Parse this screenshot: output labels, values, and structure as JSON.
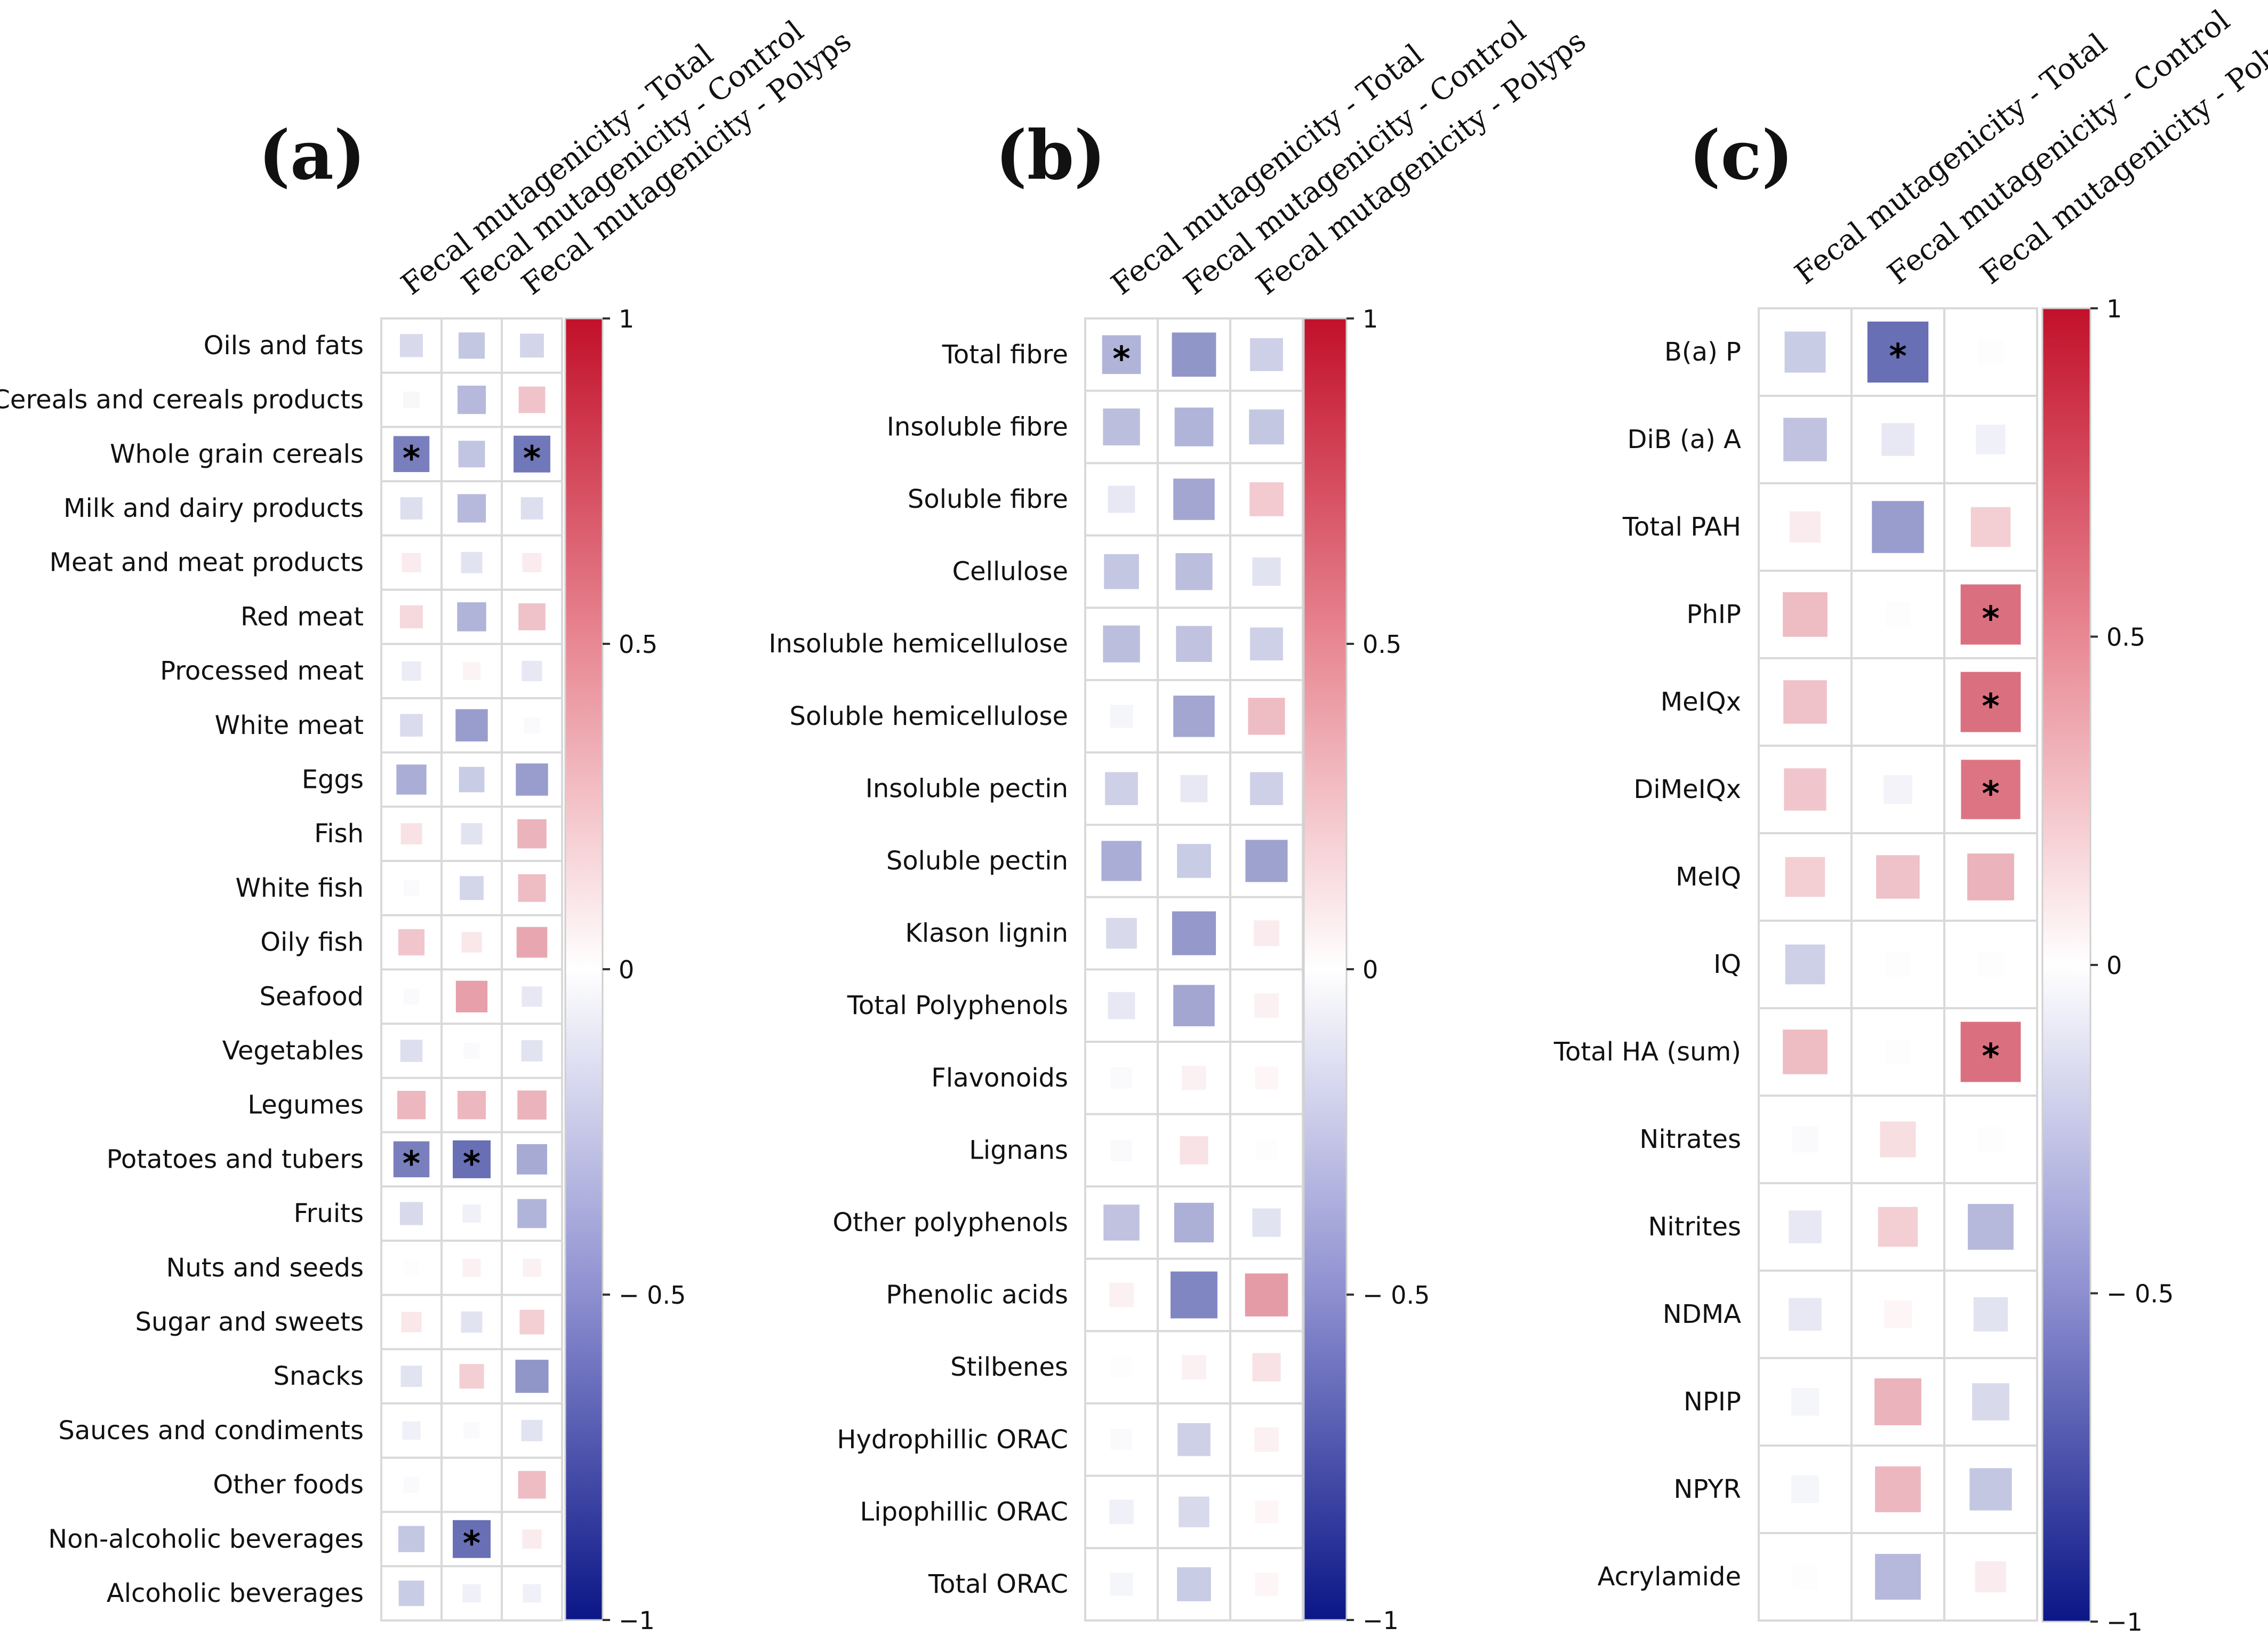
{
  "chart_data": [
    {
      "panel": "(a)",
      "type": "heatmap",
      "columns": [
        "Fecal mutagenicity - Total",
        "Fecal mutagenicity - Control",
        "Fecal mutagenicity - Polyps"
      ],
      "rows": [
        {
          "label": "Oils and fats",
          "values": [
            -0.16,
            -0.24,
            -0.18
          ],
          "sig": [
            false,
            false,
            false
          ]
        },
        {
          "label": "Cereals and cereals products",
          "values": [
            -0.03,
            -0.3,
            0.25
          ],
          "sig": [
            false,
            false,
            false
          ]
        },
        {
          "label": "Whole grain cereals",
          "values": [
            -0.55,
            -0.25,
            -0.58
          ],
          "sig": [
            true,
            false,
            true
          ]
        },
        {
          "label": "Milk and dairy products",
          "values": [
            -0.14,
            -0.3,
            -0.14
          ],
          "sig": [
            false,
            false,
            false
          ]
        },
        {
          "label": "Meat and meat products",
          "values": [
            0.08,
            -0.12,
            0.08
          ],
          "sig": [
            false,
            false,
            false
          ]
        },
        {
          "label": "Red meat",
          "values": [
            0.16,
            -0.32,
            0.26
          ],
          "sig": [
            false,
            false,
            false
          ]
        },
        {
          "label": "Processed meat",
          "values": [
            -0.08,
            0.05,
            -0.1
          ],
          "sig": [
            false,
            false,
            false
          ]
        },
        {
          "label": "White meat",
          "values": [
            -0.15,
            -0.42,
            -0.02
          ],
          "sig": [
            false,
            false,
            false
          ]
        },
        {
          "label": "Eggs",
          "values": [
            -0.35,
            -0.22,
            -0.42
          ],
          "sig": [
            false,
            false,
            false
          ]
        },
        {
          "label": "Fish",
          "values": [
            0.12,
            -0.12,
            0.32
          ],
          "sig": [
            false,
            false,
            false
          ]
        },
        {
          "label": "White fish",
          "values": [
            -0.02,
            -0.18,
            0.28
          ],
          "sig": [
            false,
            false,
            false
          ]
        },
        {
          "label": "Oily fish",
          "values": [
            0.24,
            0.1,
            0.37
          ],
          "sig": [
            false,
            false,
            false
          ]
        },
        {
          "label": "Seafood",
          "values": [
            -0.02,
            0.4,
            -0.1
          ],
          "sig": [
            false,
            false,
            false
          ]
        },
        {
          "label": "Vegetables",
          "values": [
            -0.14,
            -0.02,
            -0.12
          ],
          "sig": [
            false,
            false,
            false
          ]
        },
        {
          "label": "Legumes",
          "values": [
            0.3,
            0.3,
            0.32
          ],
          "sig": [
            false,
            false,
            false
          ]
        },
        {
          "label": "Potatoes and tubers",
          "values": [
            -0.55,
            -0.62,
            -0.36
          ],
          "sig": [
            true,
            true,
            false
          ]
        },
        {
          "label": "Fruits",
          "values": [
            -0.16,
            -0.06,
            -0.32
          ],
          "sig": [
            false,
            false,
            false
          ]
        },
        {
          "label": "Nuts and seeds",
          "values": [
            -0.01,
            0.06,
            0.06
          ],
          "sig": [
            false,
            false,
            false
          ]
        },
        {
          "label": "Sugar and sweets",
          "values": [
            0.1,
            -0.12,
            0.2
          ],
          "sig": [
            false,
            false,
            false
          ]
        },
        {
          "label": "Snacks",
          "values": [
            -0.12,
            0.2,
            -0.45
          ],
          "sig": [
            false,
            false,
            false
          ]
        },
        {
          "label": "Sauces and condiments",
          "values": [
            -0.06,
            -0.02,
            -0.12
          ],
          "sig": [
            false,
            false,
            false
          ]
        },
        {
          "label": "Other foods",
          "values": [
            -0.02,
            0.0,
            0.28
          ],
          "sig": [
            false,
            false,
            false
          ]
        },
        {
          "label": "Non-alcoholic beverages",
          "values": [
            -0.24,
            -0.62,
            0.08
          ],
          "sig": [
            false,
            true,
            false
          ]
        },
        {
          "label": "Alcoholic beverages",
          "values": [
            -0.22,
            -0.06,
            -0.06
          ],
          "sig": [
            false,
            false,
            false
          ]
        }
      ],
      "legend": {
        "min": -1,
        "max": 1,
        "ticks": [
          "1",
          "0.5",
          "0",
          "− 0.5",
          "−1"
        ],
        "tick_values": [
          1,
          0.5,
          0,
          -0.5,
          -1
        ]
      }
    },
    {
      "panel": "(b)",
      "type": "heatmap",
      "columns": [
        "Fecal mutagenicity - Total",
        "Fecal mutagenicity - Control",
        "Fecal mutagenicity - Polyps"
      ],
      "rows": [
        {
          "label": "Total fibre",
          "values": [
            -0.32,
            -0.45,
            -0.2
          ],
          "sig": [
            true,
            false,
            false
          ]
        },
        {
          "label": "Insoluble fibre",
          "values": [
            -0.28,
            -0.32,
            -0.24
          ],
          "sig": [
            false,
            false,
            false
          ]
        },
        {
          "label": "Soluble fibre",
          "values": [
            -0.1,
            -0.38,
            0.22
          ],
          "sig": [
            false,
            false,
            false
          ]
        },
        {
          "label": "Cellulose",
          "values": [
            -0.24,
            -0.28,
            -0.12
          ],
          "sig": [
            false,
            false,
            false
          ]
        },
        {
          "label": "Insoluble hemicellulose",
          "values": [
            -0.28,
            -0.26,
            -0.2
          ],
          "sig": [
            false,
            false,
            false
          ]
        },
        {
          "label": "Soluble hemicellulose",
          "values": [
            -0.04,
            -0.38,
            0.28
          ],
          "sig": [
            false,
            false,
            false
          ]
        },
        {
          "label": "Insoluble pectin",
          "values": [
            -0.2,
            -0.1,
            -0.2
          ],
          "sig": [
            false,
            false,
            false
          ]
        },
        {
          "label": "Soluble pectin",
          "values": [
            -0.35,
            -0.22,
            -0.4
          ],
          "sig": [
            false,
            false,
            false
          ]
        },
        {
          "label": "Klason lignin",
          "values": [
            -0.16,
            -0.44,
            0.08
          ],
          "sig": [
            false,
            false,
            false
          ]
        },
        {
          "label": "Total Polyphenols",
          "values": [
            -0.1,
            -0.38,
            0.06
          ],
          "sig": [
            false,
            false,
            false
          ]
        },
        {
          "label": "Flavonoids",
          "values": [
            -0.02,
            0.06,
            0.04
          ],
          "sig": [
            false,
            false,
            false
          ]
        },
        {
          "label": "Lignans",
          "values": [
            -0.02,
            0.12,
            -0.01
          ],
          "sig": [
            false,
            false,
            false
          ]
        },
        {
          "label": "Other polyphenols",
          "values": [
            -0.26,
            -0.34,
            -0.12
          ],
          "sig": [
            false,
            false,
            false
          ]
        },
        {
          "label": "Phenolic acids",
          "values": [
            0.06,
            -0.52,
            0.42
          ],
          "sig": [
            false,
            false,
            false
          ]
        },
        {
          "label": "Stilbenes",
          "values": [
            -0.01,
            0.06,
            0.12
          ],
          "sig": [
            false,
            false,
            false
          ]
        },
        {
          "label": "Hydrophillic ORAC",
          "values": [
            -0.02,
            -0.2,
            0.06
          ],
          "sig": [
            false,
            false,
            false
          ]
        },
        {
          "label": "Lipophillic ORAC",
          "values": [
            -0.06,
            -0.16,
            0.04
          ],
          "sig": [
            false,
            false,
            false
          ]
        },
        {
          "label": "Total ORAC",
          "values": [
            -0.04,
            -0.22,
            0.04
          ],
          "sig": [
            false,
            false,
            false
          ]
        }
      ],
      "legend": {
        "min": -1,
        "max": 1,
        "ticks": [
          "1",
          "0.5",
          "0",
          "− 0.5",
          "−1"
        ],
        "tick_values": [
          1,
          0.5,
          0,
          -0.5,
          -1
        ]
      }
    },
    {
      "panel": "(c)",
      "type": "heatmap",
      "columns": [
        "Fecal mutagenicity - Total",
        "Fecal mutagenicity - Control",
        "Fecal mutagenicity - Polyps"
      ],
      "rows": [
        {
          "label": "B(a) P",
          "values": [
            -0.22,
            -0.62,
            -0.01
          ],
          "sig": [
            false,
            true,
            false
          ]
        },
        {
          "label": "DiB (a) A",
          "values": [
            -0.26,
            -0.1,
            -0.06
          ],
          "sig": [
            false,
            false,
            false
          ]
        },
        {
          "label": "Total PAH",
          "values": [
            0.08,
            -0.42,
            0.2
          ],
          "sig": [
            false,
            false,
            false
          ]
        },
        {
          "label": "PhIP",
          "values": [
            0.28,
            -0.01,
            0.6
          ],
          "sig": [
            false,
            false,
            true
          ]
        },
        {
          "label": "MeIQx",
          "values": [
            0.26,
            0.0,
            0.6
          ],
          "sig": [
            false,
            false,
            true
          ]
        },
        {
          "label": "DiMeIQx",
          "values": [
            0.24,
            -0.05,
            0.58
          ],
          "sig": [
            false,
            false,
            true
          ]
        },
        {
          "label": "MeIQ",
          "values": [
            0.2,
            0.26,
            0.32
          ],
          "sig": [
            false,
            false,
            false
          ]
        },
        {
          "label": "IQ",
          "values": [
            -0.2,
            -0.01,
            -0.01
          ],
          "sig": [
            false,
            false,
            false
          ]
        },
        {
          "label": "Total HA (sum)",
          "values": [
            0.28,
            -0.01,
            0.6
          ],
          "sig": [
            false,
            false,
            true
          ]
        },
        {
          "label": "Nitrates",
          "values": [
            -0.02,
            0.14,
            -0.01
          ],
          "sig": [
            false,
            false,
            false
          ]
        },
        {
          "label": "Nitrites",
          "values": [
            -0.1,
            0.2,
            -0.3
          ],
          "sig": [
            false,
            false,
            false
          ]
        },
        {
          "label": "NDMA",
          "values": [
            -0.1,
            0.04,
            -0.12
          ],
          "sig": [
            false,
            false,
            false
          ]
        },
        {
          "label": "NPIP",
          "values": [
            -0.04,
            0.32,
            -0.16
          ],
          "sig": [
            false,
            false,
            false
          ]
        },
        {
          "label": "NPYR",
          "values": [
            -0.04,
            0.3,
            -0.24
          ],
          "sig": [
            false,
            false,
            false
          ]
        },
        {
          "label": "Acrylamide",
          "values": [
            -0.01,
            -0.3,
            0.08
          ],
          "sig": [
            false,
            false,
            false
          ]
        }
      ],
      "legend": {
        "min": -1,
        "max": 1,
        "ticks": [
          "1",
          "0.5",
          "0",
          "− 0.5",
          "−1"
        ],
        "tick_values": [
          1,
          0.5,
          0,
          -0.5,
          -1
        ]
      }
    }
  ],
  "colors": {
    "positive": "#c2102a",
    "negative": "#0b1687",
    "grid": "#d9d9d9"
  },
  "significance_marker": "*"
}
